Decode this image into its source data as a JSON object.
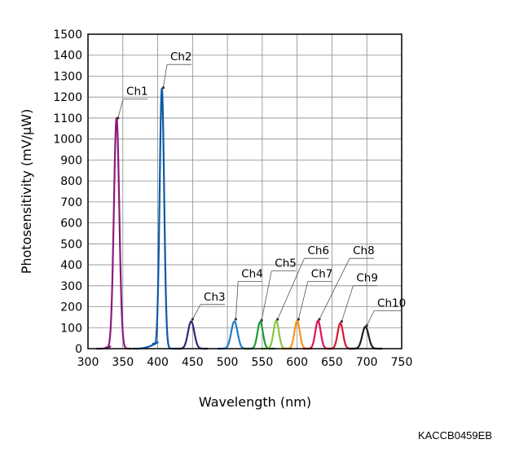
{
  "chart_data": {
    "type": "line",
    "xlabel": "Wavelength (nm)",
    "ylabel": "Photosensitivity (mV/μW)",
    "xlim": [
      300,
      750
    ],
    "ylim": [
      0,
      1500
    ],
    "x_ticks": [
      300,
      350,
      400,
      450,
      500,
      550,
      600,
      650,
      700,
      750
    ],
    "y_ticks": [
      0,
      100,
      200,
      300,
      400,
      500,
      600,
      700,
      800,
      900,
      1000,
      1100,
      1200,
      1300,
      1400,
      1500
    ],
    "grid": true,
    "series": [
      {
        "name": "Ch1",
        "color": "#8b1a7d",
        "peak_x": 341,
        "peak_y": 1100,
        "half_width": 6,
        "floor_x": [
          318,
          332
        ],
        "floor_y": 10
      },
      {
        "name": "Ch2",
        "color": "#0d5aa7",
        "peak_x": 406,
        "peak_y": 1240,
        "half_width": 5,
        "floor_x": [
          370,
          400
        ],
        "floor_y": 30
      },
      {
        "name": "Ch3",
        "color": "#2e2a7a",
        "peak_x": 448,
        "peak_y": 130,
        "half_width": 7
      },
      {
        "name": "Ch4",
        "color": "#1e7ec8",
        "peak_x": 510,
        "peak_y": 130,
        "half_width": 7
      },
      {
        "name": "Ch5",
        "color": "#1a9a3a",
        "peak_x": 547,
        "peak_y": 128,
        "half_width": 6
      },
      {
        "name": "Ch6",
        "color": "#8cc63f",
        "peak_x": 570,
        "peak_y": 133,
        "half_width": 6
      },
      {
        "name": "Ch7",
        "color": "#f7941d",
        "peak_x": 600,
        "peak_y": 133,
        "half_width": 6
      },
      {
        "name": "Ch8",
        "color": "#e0115f",
        "peak_x": 630,
        "peak_y": 133,
        "half_width": 6
      },
      {
        "name": "Ch9",
        "color": "#d7192d",
        "peak_x": 662,
        "peak_y": 122,
        "half_width": 6
      },
      {
        "name": "Ch10",
        "color": "#231f20",
        "peak_x": 698,
        "peak_y": 105,
        "half_width": 7
      }
    ],
    "annotations": [
      {
        "text": "Ch1",
        "label_x": 355,
        "label_y": 1210,
        "target_x": 343,
        "target_y": 1100
      },
      {
        "text": "Ch2",
        "label_x": 418,
        "label_y": 1375,
        "target_x": 408,
        "target_y": 1245
      },
      {
        "text": "Ch3",
        "label_x": 466,
        "label_y": 230,
        "target_x": 450,
        "target_y": 140
      },
      {
        "text": "Ch4",
        "label_x": 520,
        "label_y": 340,
        "target_x": 512,
        "target_y": 140
      },
      {
        "text": "Ch5",
        "label_x": 568,
        "label_y": 390,
        "target_x": 549,
        "target_y": 135
      },
      {
        "text": "Ch6",
        "label_x": 615,
        "label_y": 450,
        "target_x": 572,
        "target_y": 140
      },
      {
        "text": "Ch7",
        "label_x": 620,
        "label_y": 340,
        "target_x": 602,
        "target_y": 140
      },
      {
        "text": "Ch8",
        "label_x": 680,
        "label_y": 450,
        "target_x": 632,
        "target_y": 140
      },
      {
        "text": "Ch9",
        "label_x": 685,
        "label_y": 320,
        "target_x": 664,
        "target_y": 130
      },
      {
        "text": "Ch10",
        "label_x": 715,
        "label_y": 200,
        "target_x": 700,
        "target_y": 110
      }
    ]
  },
  "figure_code": "KACCB0459EB"
}
